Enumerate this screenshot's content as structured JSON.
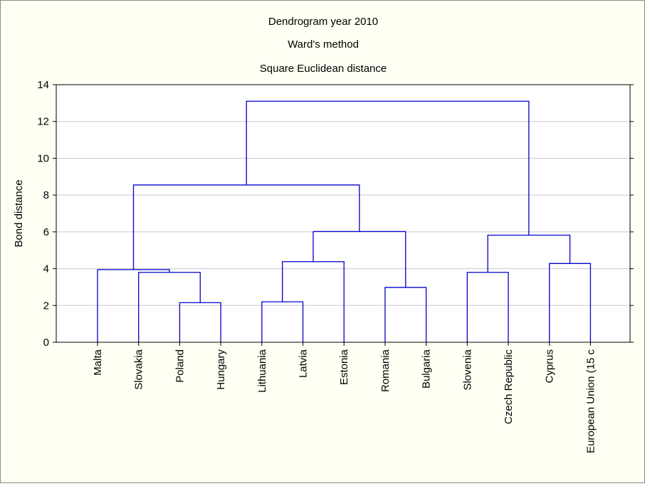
{
  "colors": {
    "background": "#fffff4",
    "plot_background": "#ffffff",
    "link": "#0000cc",
    "grid": "#c8c8c8",
    "axis": "#000000"
  },
  "chart_data": {
    "type": "dendrogram",
    "title_lines": [
      "Dendrogram year 2010",
      "Ward's method",
      "Square Euclidean distance"
    ],
    "ylabel": "Bond distance",
    "ylim": [
      0,
      14
    ],
    "yticks": [
      0,
      2,
      4,
      6,
      8,
      10,
      12,
      14
    ],
    "grid": "horizontal",
    "leaves": [
      "Malta",
      "Slovakia",
      "Poland",
      "Hungary",
      "Lithuania",
      "Latvia",
      "Estonia",
      "Romania",
      "Bulgaria",
      "Slovenia",
      "Czech Republic",
      "Cyprus",
      "European Union (15 c"
    ],
    "merges": [
      {
        "a": "Poland",
        "b": "Hungary",
        "height": 2.15
      },
      {
        "a": "Lithuania",
        "b": "Latvia",
        "height": 2.2
      },
      {
        "a": "Romania",
        "b": "Bulgaria",
        "height": 2.98
      },
      {
        "a": "Slovakia",
        "b": [
          "Poland",
          "Hungary"
        ],
        "height": 3.8
      },
      {
        "a": "Slovenia",
        "b": "Czech Republic",
        "height": 3.8
      },
      {
        "a": "Malta",
        "b": [
          "Slovakia",
          "Poland",
          "Hungary"
        ],
        "height": 3.95
      },
      {
        "a": "Cyprus",
        "b": "European Union (15 c",
        "height": 4.28
      },
      {
        "a": [
          "Lithuania",
          "Latvia"
        ],
        "b": "Estonia",
        "height": 4.38
      },
      {
        "a": [
          "Slovenia",
          "Czech Republic"
        ],
        "b": [
          "Cyprus",
          "European Union (15 c"
        ],
        "height": 5.82
      },
      {
        "a": [
          "Lithuania",
          "Latvia",
          "Estonia"
        ],
        "b": [
          "Romania",
          "Bulgaria"
        ],
        "height": 6.02
      },
      {
        "a": [
          "Malta",
          "Slovakia",
          "Poland",
          "Hungary"
        ],
        "b": [
          "Lithuania",
          "Latvia",
          "Estonia",
          "Romania",
          "Bulgaria"
        ],
        "height": 8.55
      },
      {
        "a": [
          "Malta",
          "Slovakia",
          "Poland",
          "Hungary",
          "Lithuania",
          "Latvia",
          "Estonia",
          "Romania",
          "Bulgaria"
        ],
        "b": [
          "Slovenia",
          "Czech Republic",
          "Cyprus",
          "European Union (15 c"
        ],
        "height": 13.1
      }
    ]
  }
}
